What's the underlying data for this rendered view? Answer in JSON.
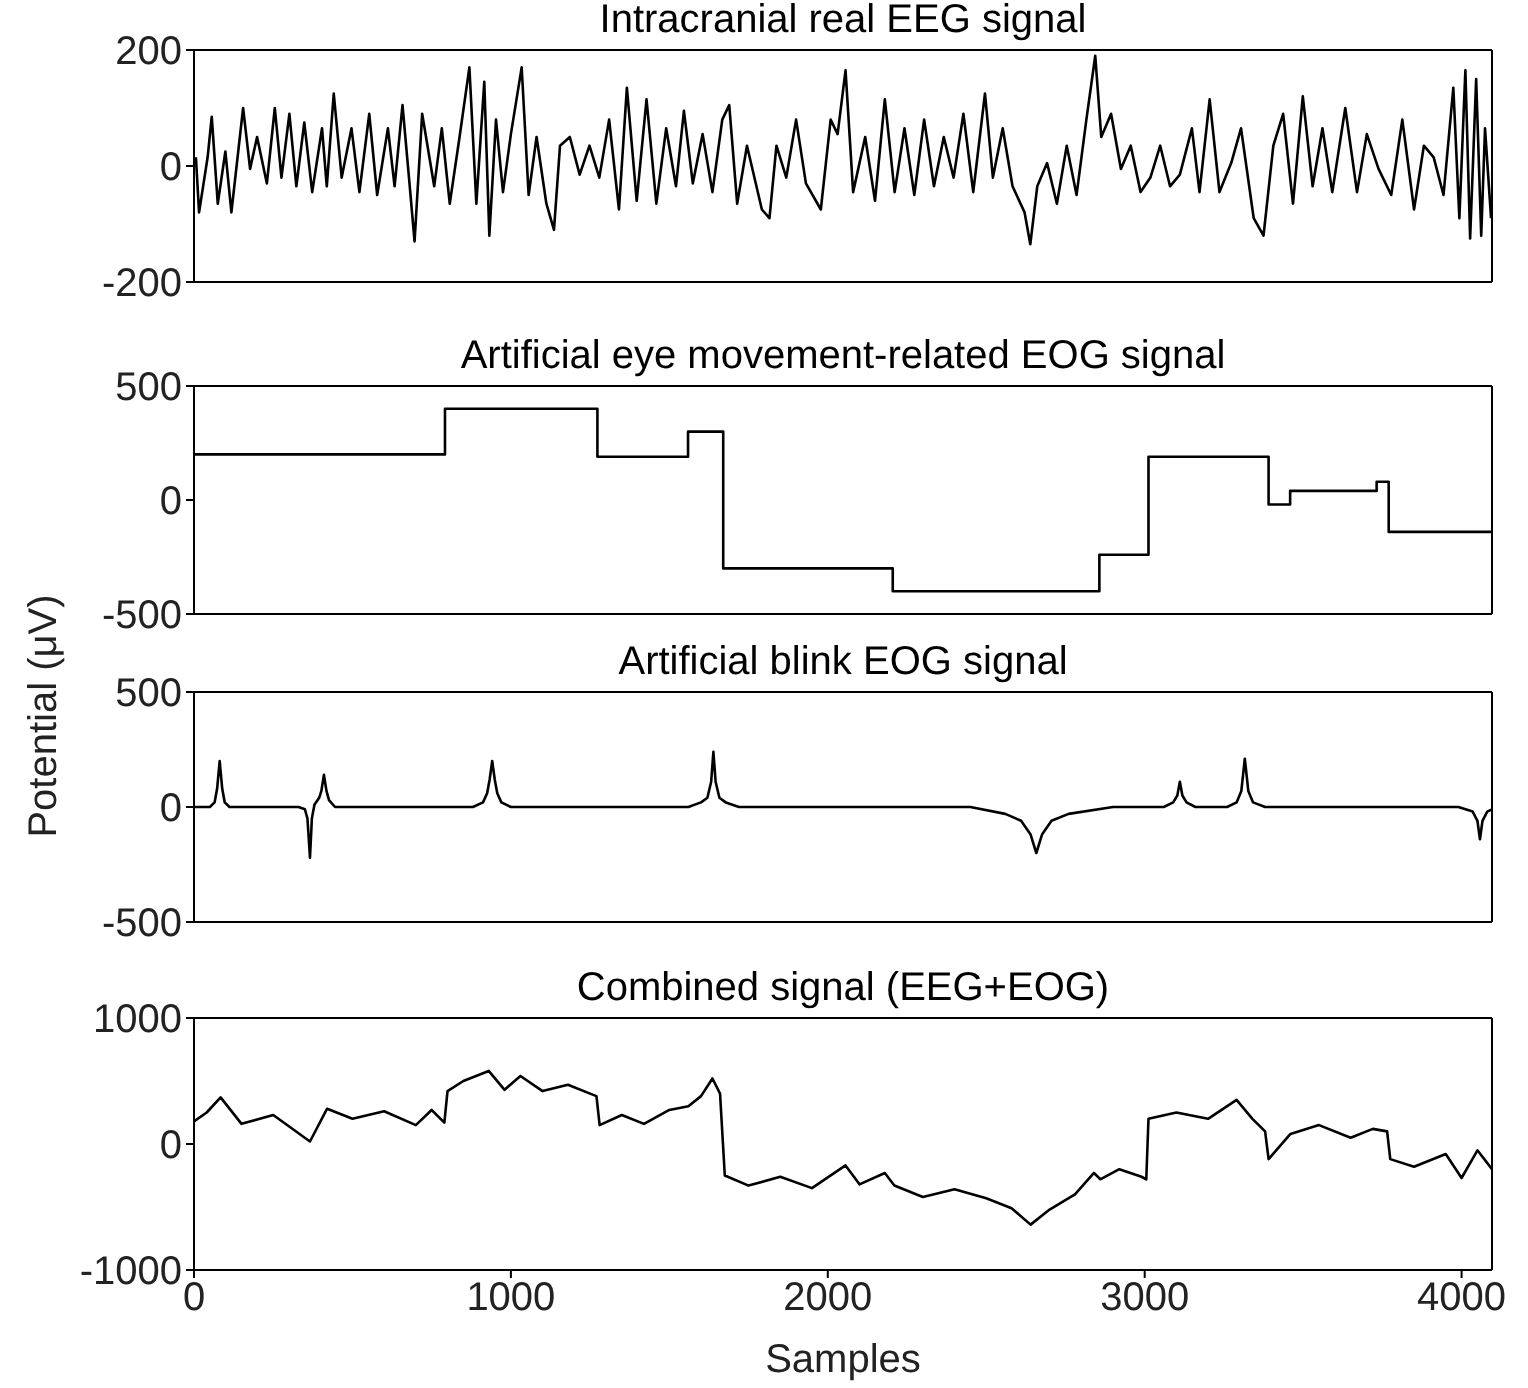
{
  "chart_data": [
    {
      "type": "line",
      "title": "Intracranial real EEG signal",
      "color": "#000000",
      "xlim": [
        0,
        4096
      ],
      "ylim": [
        -200,
        200
      ],
      "yticks": [
        -200,
        0,
        200
      ],
      "tick_labels": "y",
      "x": [
        6,
        16,
        43,
        56,
        75,
        99,
        118,
        155,
        177,
        199,
        230,
        255,
        276,
        301,
        323,
        348,
        373,
        404,
        419,
        441,
        466,
        497,
        522,
        553,
        578,
        612,
        633,
        658,
        680,
        696,
        720,
        758,
        782,
        807,
        838,
        869,
        891,
        916,
        932,
        953,
        975,
        1000,
        1034,
        1056,
        1081,
        1112,
        1136,
        1155,
        1186,
        1217,
        1248,
        1279,
        1310,
        1341,
        1366,
        1397,
        1428,
        1459,
        1490,
        1521,
        1546,
        1574,
        1605,
        1636,
        1667,
        1689,
        1714,
        1745,
        1792,
        1816,
        1838,
        1869,
        1900,
        1931,
        1978,
        2009,
        2031,
        2056,
        2080,
        2118,
        2149,
        2180,
        2211,
        2242,
        2273,
        2304,
        2335,
        2366,
        2397,
        2428,
        2459,
        2496,
        2521,
        2552,
        2583,
        2621,
        2639,
        2661,
        2692,
        2723,
        2754,
        2785,
        2816,
        2844,
        2863,
        2894,
        2925,
        2956,
        2987,
        3018,
        3049,
        3080,
        3111,
        3149,
        3173,
        3205,
        3236,
        3273,
        3304,
        3344,
        3375,
        3406,
        3437,
        3468,
        3499,
        3530,
        3561,
        3592,
        3633,
        3670,
        3701,
        3738,
        3778,
        3813,
        3850,
        3881,
        3912,
        3943,
        3974,
        3993,
        4012,
        4027,
        4046,
        4062,
        4074,
        4093
      ],
      "values": [
        15,
        -80,
        15,
        85,
        -65,
        25,
        -80,
        100,
        -5,
        50,
        -30,
        100,
        -20,
        90,
        -35,
        75,
        -45,
        65,
        -35,
        125,
        -20,
        65,
        -45,
        90,
        -50,
        65,
        -35,
        105,
        -30,
        -130,
        90,
        -35,
        65,
        -65,
        50,
        170,
        -65,
        145,
        -120,
        80,
        -45,
        55,
        170,
        -50,
        50,
        -65,
        -110,
        35,
        50,
        -15,
        35,
        -20,
        80,
        -75,
        135,
        -60,
        115,
        -65,
        65,
        -35,
        95,
        -30,
        55,
        -45,
        80,
        105,
        -65,
        35,
        -75,
        -90,
        35,
        -20,
        80,
        -30,
        -75,
        80,
        55,
        165,
        -45,
        50,
        -60,
        115,
        -45,
        65,
        -50,
        80,
        -35,
        50,
        -20,
        90,
        -45,
        125,
        -20,
        65,
        -35,
        -80,
        -135,
        -35,
        5,
        -65,
        35,
        -50,
        80,
        190,
        50,
        90,
        -5,
        35,
        -45,
        -20,
        35,
        -35,
        -15,
        65,
        -45,
        115,
        -45,
        5,
        65,
        -90,
        -120,
        35,
        90,
        -65,
        120,
        -35,
        65,
        -45,
        100,
        -45,
        55,
        -5,
        -50,
        80,
        -75,
        35,
        15,
        -50,
        135,
        -90,
        165,
        -125,
        150,
        -120,
        65,
        -90
      ]
    },
    {
      "type": "step",
      "title": "Artificial eye movement-related EOG signal",
      "ylabel": "Potential (μV)",
      "color": "#000000",
      "xlim": [
        0,
        4096
      ],
      "ylim": [
        -500,
        500
      ],
      "yticks": [
        -500,
        0,
        500
      ],
      "tick_labels": "y",
      "x": [
        0,
        792,
        1273,
        1559,
        1670,
        2205,
        2857,
        3012,
        3391,
        3459,
        3732,
        3770,
        4096
      ],
      "values": [
        200,
        400,
        190,
        300,
        -300,
        -400,
        -240,
        190,
        -20,
        40,
        80,
        -140,
        -140
      ]
    },
    {
      "type": "line",
      "title": "Artificial blink EOG signal",
      "color": "#000000",
      "xlim": [
        0,
        4096
      ],
      "ylim": [
        -500,
        500
      ],
      "yticks": [
        -500,
        0,
        500
      ],
      "tick_labels": "y",
      "x": [
        0,
        50,
        65,
        73,
        81,
        89,
        97,
        112,
        330,
        350,
        358,
        366,
        372,
        380,
        395,
        402,
        410,
        418,
        426,
        445,
        880,
        912,
        925,
        933,
        941,
        949,
        957,
        970,
        1000,
        1560,
        1600,
        1620,
        1632,
        1639,
        1646,
        1658,
        1678,
        1720,
        2450,
        2560,
        2610,
        2640,
        2658,
        2676,
        2706,
        2760,
        2900,
        3060,
        3090,
        3103,
        3111,
        3119,
        3132,
        3160,
        3260,
        3290,
        3305,
        3316,
        3327,
        3342,
        3380,
        3990,
        4035,
        4050,
        4058,
        4066,
        4081,
        4096
      ],
      "values": [
        0,
        0,
        20,
        80,
        200,
        80,
        20,
        0,
        0,
        -10,
        -50,
        -220,
        -50,
        10,
        40,
        70,
        140,
        70,
        30,
        0,
        0,
        20,
        60,
        120,
        200,
        120,
        60,
        20,
        0,
        0,
        20,
        40,
        110,
        240,
        110,
        40,
        20,
        0,
        0,
        -30,
        -60,
        -120,
        -200,
        -120,
        -60,
        -30,
        0,
        0,
        20,
        50,
        110,
        50,
        20,
        0,
        0,
        20,
        70,
        210,
        70,
        20,
        0,
        0,
        -20,
        -60,
        -140,
        -60,
        -20,
        -10
      ]
    },
    {
      "type": "line",
      "title": "Combined signal (EEG+EOG)",
      "xlabel": "Samples",
      "color": "#000000",
      "xlim": [
        0,
        4096
      ],
      "xticks": [
        0,
        1000,
        2000,
        3000,
        4000
      ],
      "ylim": [
        -1000,
        1000
      ],
      "yticks": [
        -1000,
        0,
        1000
      ],
      "x": [
        0,
        40,
        84,
        150,
        250,
        366,
        420,
        500,
        600,
        700,
        750,
        790,
        800,
        850,
        930,
        980,
        1030,
        1100,
        1180,
        1250,
        1270,
        1280,
        1350,
        1420,
        1500,
        1560,
        1600,
        1636,
        1660,
        1675,
        1750,
        1850,
        1950,
        2056,
        2100,
        2180,
        2210,
        2300,
        2400,
        2500,
        2580,
        2640,
        2700,
        2780,
        2840,
        2860,
        2920,
        2990,
        3005,
        3012,
        3100,
        3200,
        3290,
        3340,
        3380,
        3391,
        3460,
        3550,
        3650,
        3720,
        3765,
        3775,
        3850,
        3950,
        4000,
        4050,
        4096
      ],
      "values": [
        180,
        250,
        370,
        160,
        230,
        20,
        280,
        200,
        260,
        150,
        270,
        170,
        420,
        500,
        580,
        430,
        540,
        420,
        470,
        400,
        380,
        150,
        230,
        160,
        270,
        300,
        380,
        520,
        400,
        -250,
        -330,
        -260,
        -350,
        -170,
        -320,
        -230,
        -330,
        -420,
        -360,
        -430,
        -510,
        -640,
        -520,
        -400,
        -230,
        -280,
        -200,
        -260,
        -280,
        200,
        250,
        200,
        350,
        200,
        100,
        -120,
        80,
        150,
        50,
        120,
        100,
        -120,
        -180,
        -80,
        -270,
        -50,
        -200
      ]
    }
  ]
}
